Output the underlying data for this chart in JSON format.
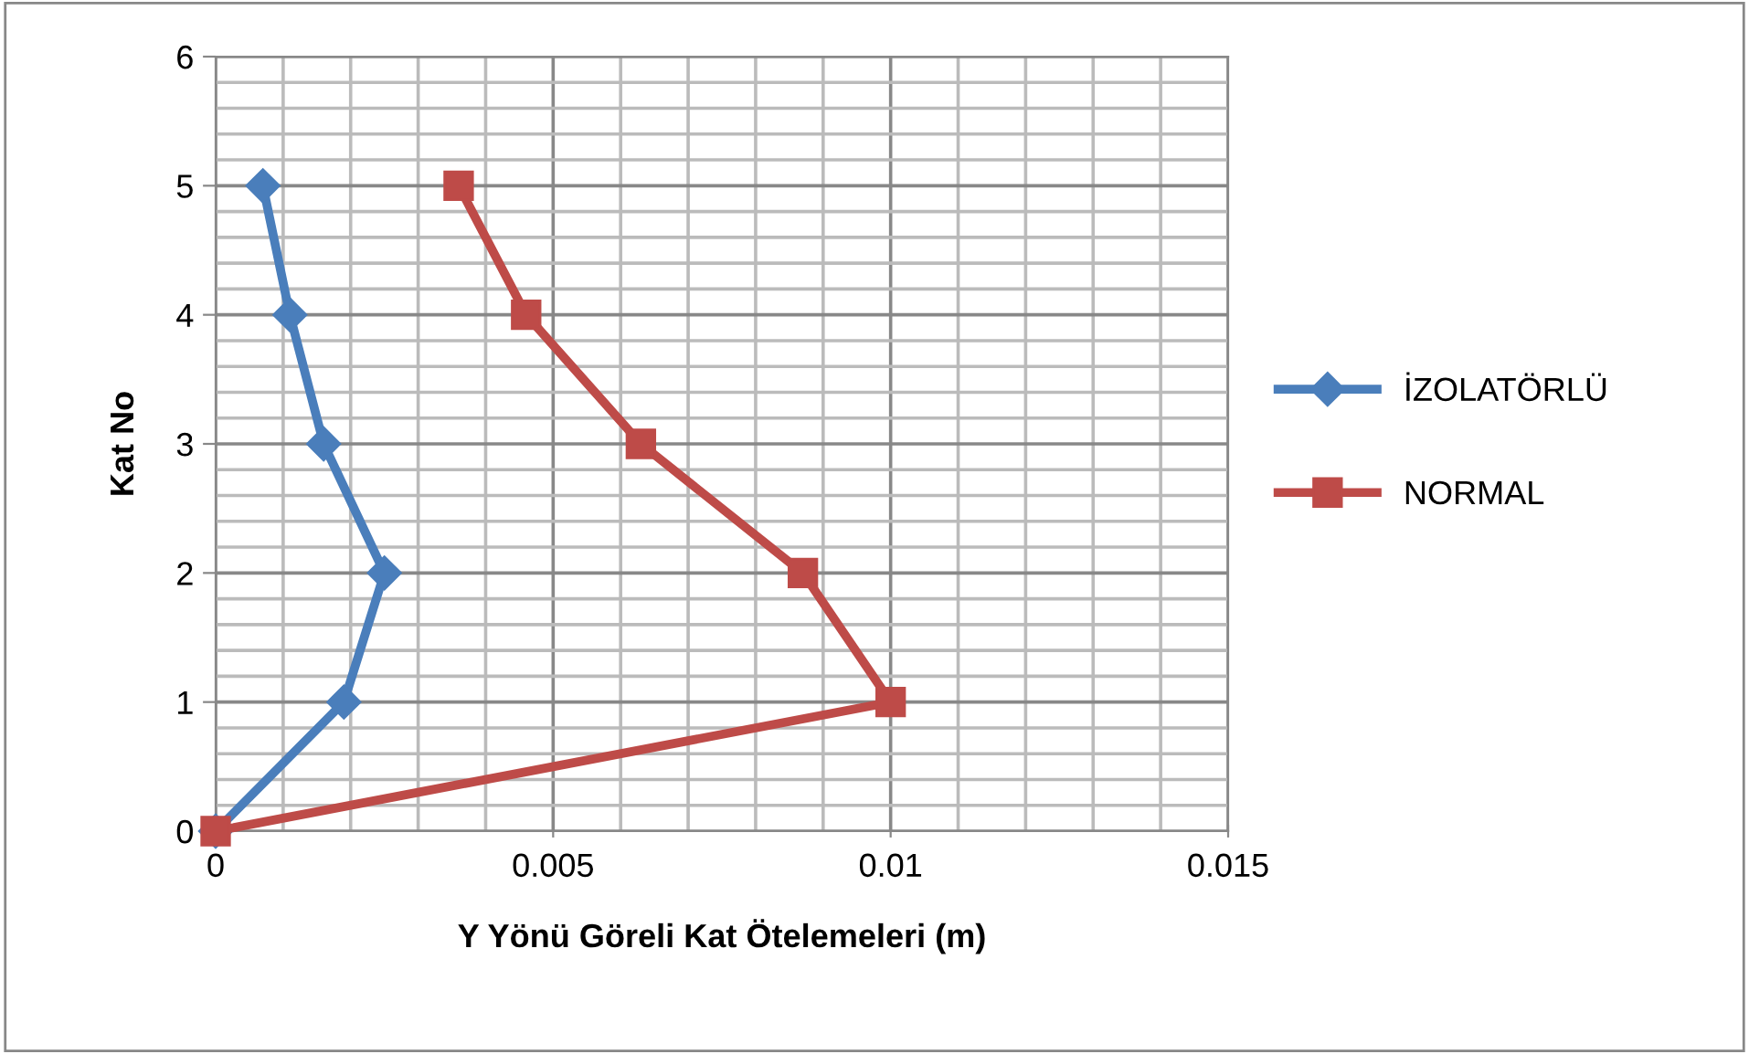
{
  "chart_data": {
    "type": "line",
    "xlabel": "Y Yönü Göreli Kat Ötelemeleri (m)",
    "ylabel": "Kat No",
    "series": [
      {
        "name": "İZOLATÖRLÜ",
        "color": "#4a7ebb",
        "marker": "diamond",
        "x": [
          0,
          0.0019,
          0.0025,
          0.0016,
          0.0011,
          0.0007
        ],
        "values": [
          0,
          1,
          2,
          3,
          4,
          5
        ]
      },
      {
        "name": "NORMAL",
        "color": "#be4b48",
        "marker": "square",
        "x": [
          0,
          0.01,
          0.0087,
          0.0063,
          0.0046,
          0.0036
        ],
        "values": [
          0,
          1,
          2,
          3,
          4,
          5
        ]
      }
    ],
    "xlim": [
      0,
      0.015
    ],
    "xticks": [
      0,
      0.005,
      0.01,
      0.015
    ],
    "ylim": [
      0,
      6
    ],
    "yticks": [
      0,
      1,
      2,
      3,
      4,
      5,
      6
    ],
    "grid": true,
    "legend": "right"
  }
}
